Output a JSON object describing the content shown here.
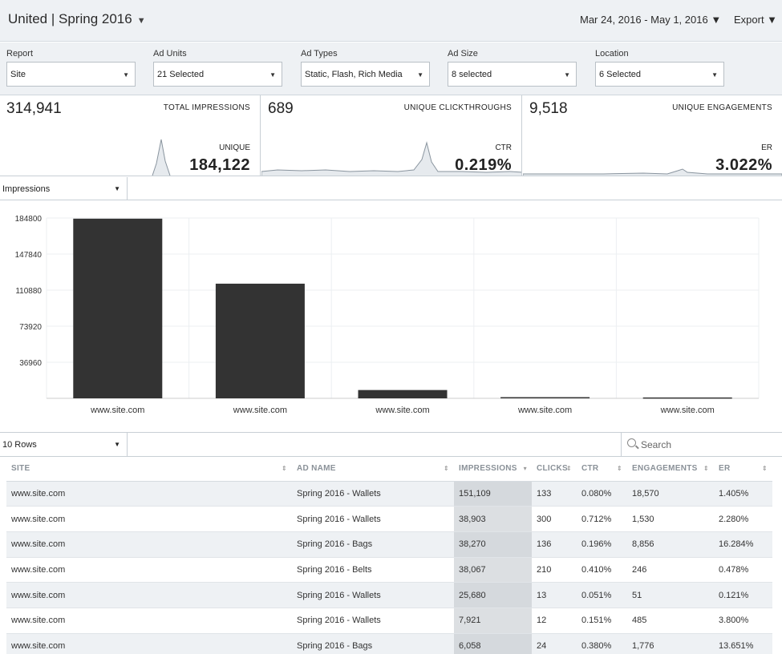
{
  "header": {
    "campaign": "United | Spring 2016",
    "campaign_caret": "▼",
    "date_range": "Mar 24, 2016 - May 1, 2016 ▼",
    "export": "Export ▼"
  },
  "filters": [
    {
      "label": "Report",
      "value": "Site"
    },
    {
      "label": "Ad Units",
      "value": "21 Selected"
    },
    {
      "label": "Ad Types",
      "value": "Static, Flash, Rich Media"
    },
    {
      "label": "Ad Size",
      "value": "8 selected"
    },
    {
      "label": "Location",
      "value": "6 Selected"
    }
  ],
  "kpis": [
    {
      "value": "314,941",
      "title": "TOTAL IMPRESSIONS",
      "sub_label": "UNIQUE",
      "sub_value": "184,122"
    },
    {
      "value": "689",
      "title": "UNIQUE CLICKTHROUGHS",
      "sub_label": "CTR",
      "sub_value": "0.219%"
    },
    {
      "value": "9,518",
      "title": "UNIQUE ENGAGEMENTS",
      "sub_label": "ER",
      "sub_value": "3.022%"
    }
  ],
  "metric_select": "Impressions",
  "chart_data": {
    "type": "bar",
    "categories": [
      "www.site.com",
      "www.site.com",
      "www.site.com",
      "www.site.com",
      "www.site.com"
    ],
    "values": [
      184122,
      117500,
      8500,
      1200,
      900
    ],
    "yticks": [
      36960,
      73920,
      110880,
      147840,
      184800
    ],
    "ylim": [
      0,
      184800
    ],
    "bar_color": "#333333"
  },
  "rows_select": "10 Rows",
  "search": {
    "placeholder": "Search"
  },
  "table": {
    "columns": [
      "SITE",
      "AD NAME",
      "IMPRESSIONS",
      "CLICKS",
      "CTR",
      "ENGAGEMENTS",
      "ER"
    ],
    "sort_glyphs": [
      "⇕",
      "⇕",
      "▾",
      "⇕",
      "⇕",
      "⇕",
      "⇕"
    ],
    "rows": [
      [
        "www.site.com",
        "Spring 2016 - Wallets",
        "151,109",
        "133",
        "0.080%",
        "18,570",
        "1.405%"
      ],
      [
        "www.site.com",
        "Spring 2016 - Wallets",
        "38,903",
        "300",
        "0.712%",
        "1,530",
        "2.280%"
      ],
      [
        "www.site.com",
        "Spring 2016 - Bags",
        "38,270",
        "136",
        "0.196%",
        "8,856",
        "16.284%"
      ],
      [
        "www.site.com",
        "Spring 2016 - Belts",
        "38,067",
        "210",
        "0.410%",
        "246",
        "0.478%"
      ],
      [
        "www.site.com",
        "Spring 2016 - Wallets",
        "25,680",
        "13",
        "0.051%",
        "51",
        "0.121%"
      ],
      [
        "www.site.com",
        "Spring 2016 - Wallets",
        "7,921",
        "12",
        "0.151%",
        "485",
        "3.800%"
      ],
      [
        "www.site.com",
        "Spring 2016 - Bags",
        "6,058",
        "24",
        "0.380%",
        "1,776",
        "13.651%"
      ]
    ]
  }
}
